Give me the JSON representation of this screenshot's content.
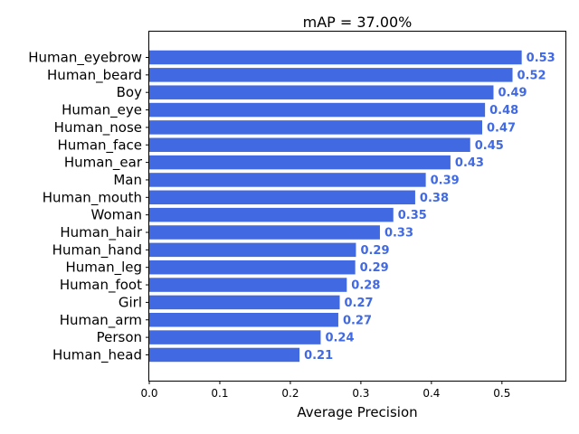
{
  "chart_data": {
    "type": "bar",
    "orientation": "horizontal",
    "title": "mAP = 37.00%",
    "xlabel": "Average Precision",
    "ylabel": "",
    "xlim": [
      0,
      0.59
    ],
    "x_ticks": [
      "0.0",
      "0.1",
      "0.2",
      "0.3",
      "0.4",
      "0.5"
    ],
    "grid": false,
    "legend": "none",
    "bar_color": "#4169E1",
    "label_color": "#4169E1",
    "categories": [
      "Human_eyebrow",
      "Human_beard",
      "Boy",
      "Human_eye",
      "Human_nose",
      "Human_face",
      "Human_ear",
      "Man",
      "Human_mouth",
      "Woman",
      "Human_hair",
      "Human_hand",
      "Human_leg",
      "Human_foot",
      "Girl",
      "Human_arm",
      "Person",
      "Human_head"
    ],
    "values": [
      0.528,
      0.515,
      0.488,
      0.476,
      0.472,
      0.455,
      0.427,
      0.392,
      0.377,
      0.346,
      0.327,
      0.293,
      0.292,
      0.28,
      0.27,
      0.268,
      0.243,
      0.213
    ],
    "value_labels": [
      "0.53",
      "0.52",
      "0.49",
      "0.48",
      "0.47",
      "0.45",
      "0.43",
      "0.39",
      "0.38",
      "0.35",
      "0.33",
      "0.29",
      "0.29",
      "0.28",
      "0.27",
      "0.27",
      "0.24",
      "0.21"
    ]
  }
}
